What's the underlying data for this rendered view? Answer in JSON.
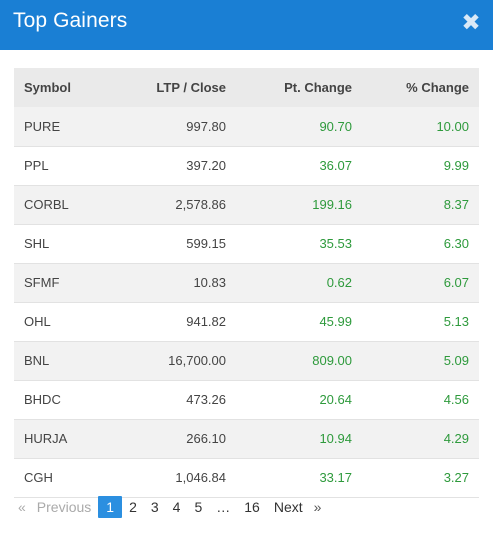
{
  "header": {
    "title": "Top Gainers",
    "close_glyph": "✖"
  },
  "table": {
    "columns": {
      "symbol": "Symbol",
      "ltp": "LTP / Close",
      "pt_change": "Pt. Change",
      "pct_change": "% Change"
    },
    "rows": [
      {
        "symbol": "PURE",
        "ltp": "997.80",
        "pt": "90.70",
        "pct": "10.00"
      },
      {
        "symbol": "PPL",
        "ltp": "397.20",
        "pt": "36.07",
        "pct": "9.99"
      },
      {
        "symbol": "CORBL",
        "ltp": "2,578.86",
        "pt": "199.16",
        "pct": "8.37"
      },
      {
        "symbol": "SHL",
        "ltp": "599.15",
        "pt": "35.53",
        "pct": "6.30"
      },
      {
        "symbol": "SFMF",
        "ltp": "10.83",
        "pt": "0.62",
        "pct": "6.07"
      },
      {
        "symbol": "OHL",
        "ltp": "941.82",
        "pt": "45.99",
        "pct": "5.13"
      },
      {
        "symbol": "BNL",
        "ltp": "16,700.00",
        "pt": "809.00",
        "pct": "5.09"
      },
      {
        "symbol": "BHDC",
        "ltp": "473.26",
        "pt": "20.64",
        "pct": "4.56"
      },
      {
        "symbol": "HURJA",
        "ltp": "266.10",
        "pt": "10.94",
        "pct": "4.29"
      },
      {
        "symbol": "CGH",
        "ltp": "1,046.84",
        "pt": "33.17",
        "pct": "3.27"
      }
    ]
  },
  "colors": {
    "header_bg": "#1a7fd4",
    "positive": "#2e9a3c",
    "active_page": "#2b8fe0"
  },
  "pagination": {
    "prev_arrow": "«",
    "prev_label": "Previous",
    "pages": [
      "1",
      "2",
      "3",
      "4",
      "5",
      "…",
      "16"
    ],
    "active_page": "1",
    "next_label": "Next",
    "next_arrow": "»"
  }
}
